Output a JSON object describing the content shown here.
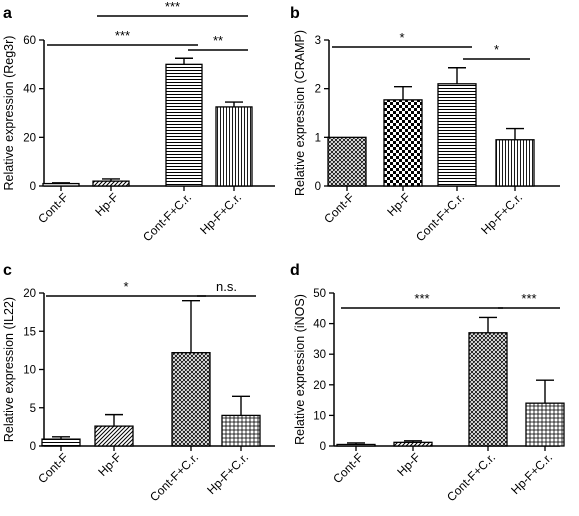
{
  "chart_data": [
    {
      "panel": "a",
      "type": "bar",
      "categories": [
        "Cont-F",
        "Hp-F",
        "Cont-F+C.r.",
        "Hp-F+C.r."
      ],
      "values": [
        1,
        2,
        50,
        32.5
      ],
      "errors": [
        0.3,
        0.9,
        2.5,
        2.0
      ],
      "ylabel": "Relative expression (Reg3r)",
      "ylim": [
        0,
        60
      ],
      "yticks": [
        0,
        20,
        40,
        60
      ],
      "patterns": [
        "solid",
        "diagonal",
        "hlines",
        "vlines"
      ],
      "significance": [
        {
          "from": 0,
          "to": 2,
          "label": "***"
        },
        {
          "from": 1,
          "to": 3,
          "label": "***"
        },
        {
          "from": 2,
          "to": 3,
          "label": "**"
        }
      ]
    },
    {
      "panel": "b",
      "type": "bar",
      "categories": [
        "Cont-F",
        "Hp-F",
        "Cont-F+C.r.",
        "Hp-F+C.r."
      ],
      "values": [
        1,
        1.77,
        2.1,
        0.95
      ],
      "errors": [
        0,
        0.27,
        0.33,
        0.23
      ],
      "ylabel": "Relative expression (CRAMP)",
      "ylim": [
        0,
        3
      ],
      "yticks": [
        0,
        1,
        2,
        3
      ],
      "patterns": [
        "crosshatch",
        "checker",
        "hlines",
        "vlines"
      ],
      "significance": [
        {
          "from": 0,
          "to": 2,
          "label": "*"
        },
        {
          "from": 2,
          "to": 3,
          "label": "*"
        }
      ]
    },
    {
      "panel": "c",
      "type": "bar",
      "categories": [
        "Cont-F",
        "Hp-F",
        "Cont-F+C.r.",
        "Hp-F+C.r."
      ],
      "values": [
        0.9,
        2.6,
        12.2,
        4.0
      ],
      "errors": [
        0.3,
        1.5,
        6.8,
        2.5
      ],
      "ylabel": "Relative expression (IL22)",
      "ylim": [
        0,
        20
      ],
      "yticks": [
        0,
        5,
        10,
        15,
        20
      ],
      "patterns": [
        "hlines",
        "diagonal",
        "crosshatch",
        "grid"
      ],
      "significance": [
        {
          "from": 0,
          "to": 2,
          "label": "*"
        },
        {
          "from": 2,
          "to": 3,
          "label": "n.s."
        }
      ]
    },
    {
      "panel": "d",
      "type": "bar",
      "categories": [
        "Cont-F",
        "Hp-F",
        "Cont-F+C.r.",
        "Hp-F+C.r."
      ],
      "values": [
        0.5,
        1.2,
        37,
        14
      ],
      "errors": [
        0.5,
        0.5,
        5,
        7.5
      ],
      "ylabel": "Relative expression (iNOS)",
      "ylim": [
        0,
        50
      ],
      "yticks": [
        0,
        10,
        20,
        30,
        40,
        50
      ],
      "patterns": [
        "solid",
        "diagonal",
        "crosshatch",
        "grid"
      ],
      "significance": [
        {
          "from": 0,
          "to": 2,
          "label": "***"
        },
        {
          "from": 2,
          "to": 3,
          "label": "***"
        }
      ]
    }
  ]
}
